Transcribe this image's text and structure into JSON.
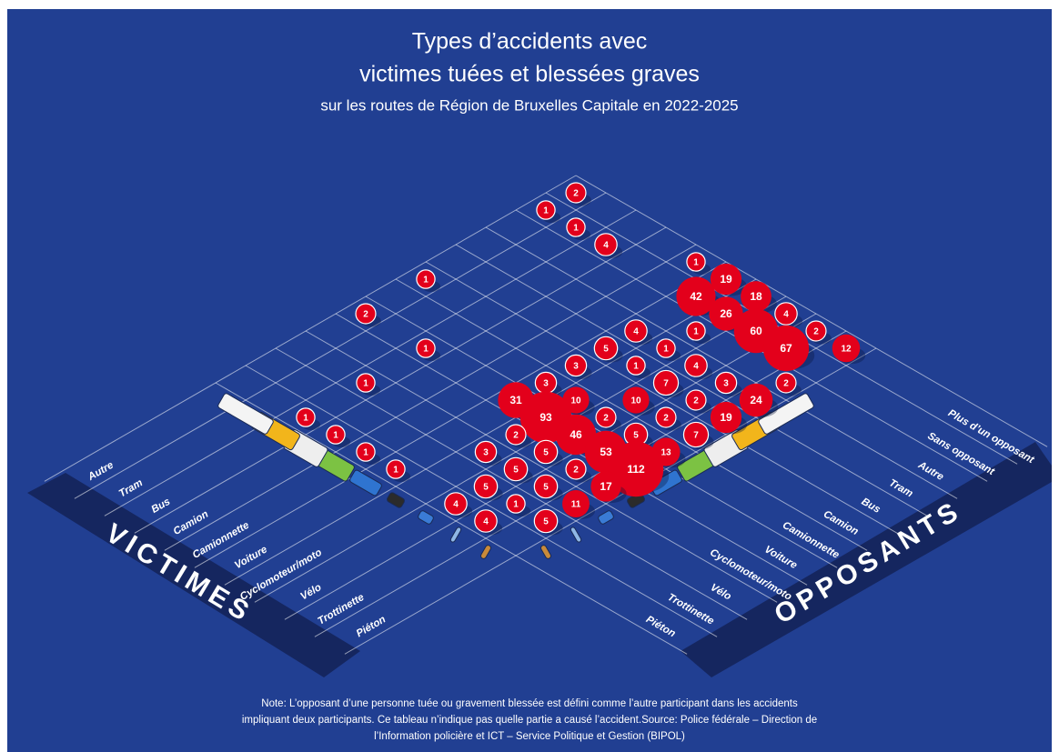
{
  "chart_data": {
    "type": "bubble-matrix",
    "title": [
      "Types d’accidents avec",
      "victimes tuées et blessées graves"
    ],
    "subtitle": "sur les routes de Région de Bruxelles Capitale en 2022-2025",
    "row_axis_label": "VICTIMES",
    "column_axis_label": "OPPOSANTS",
    "rows": [
      "Autre",
      "Tram",
      "Bus",
      "Camion",
      "Camionnette",
      "Voiture",
      "Cyclomoteur/moto",
      "Vélo",
      "Trottinette",
      "Piéton"
    ],
    "columns": [
      "Plus d’un opposant",
      "Sans opposant",
      "Autre",
      "Tram",
      "Bus",
      "Camion",
      "Camionnette",
      "Voiture",
      "Cyclomoteur/moto",
      "Vélo",
      "Trottinette",
      "Piéton"
    ],
    "values": [
      [
        2,
        1,
        null,
        null,
        null,
        1,
        null,
        2,
        null,
        null,
        null,
        null
      ],
      [
        null,
        1,
        null,
        null,
        null,
        null,
        null,
        null,
        null,
        null,
        null,
        null
      ],
      [
        null,
        4,
        null,
        null,
        null,
        null,
        null,
        1,
        null,
        1,
        null,
        1
      ],
      [
        null,
        null,
        null,
        null,
        null,
        null,
        null,
        null,
        null,
        null,
        null,
        1
      ],
      [
        1,
        null,
        null,
        null,
        null,
        null,
        null,
        null,
        null,
        null,
        null,
        1
      ],
      [
        19,
        42,
        null,
        4,
        5,
        3,
        3,
        31,
        null,
        null,
        null,
        1
      ],
      [
        18,
        26,
        1,
        1,
        1,
        null,
        10,
        93,
        2,
        3,
        null,
        null
      ],
      [
        4,
        60,
        null,
        4,
        7,
        10,
        2,
        46,
        5,
        5,
        5,
        4
      ],
      [
        2,
        67,
        null,
        3,
        2,
        2,
        5,
        53,
        2,
        5,
        1,
        4
      ],
      [
        12,
        null,
        2,
        24,
        19,
        7,
        13,
        112,
        17,
        11,
        5,
        null
      ]
    ],
    "color": "#e3001b",
    "note": [
      "Note: L’opposant d’une personne tuée ou gravement blessée est défini comme l’autre participant dans les accidents",
      "impliquant deux participants. Ce tableau n’indique pas quelle partie a causé l’accident.Source: Police fédérale – Direction de",
      "l’Information policière et ICT – Service Politique et Gestion (BIPOL)"
    ]
  }
}
